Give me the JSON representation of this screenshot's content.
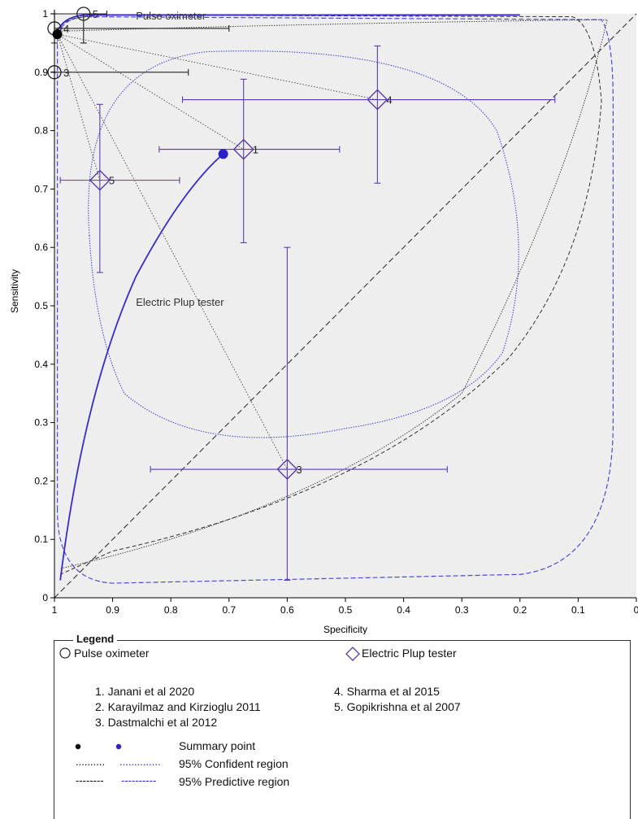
{
  "chart_data": {
    "type": "scatter",
    "xlabel": "Specificity",
    "ylabel": "Sensitivity",
    "x_reversed": true,
    "xlim": [
      1,
      0
    ],
    "ylim": [
      0,
      1
    ],
    "x_ticks": [
      "1",
      "0.9",
      "0.8",
      "0.7",
      "0.6",
      "0.5",
      "0.4",
      "0.3",
      "0.2",
      "0.1",
      "0"
    ],
    "y_ticks": [
      "0",
      "0.1",
      "0.2",
      "0.3",
      "0.4",
      "0.5",
      "0.6",
      "0.7",
      "0.8",
      "0.9",
      "1"
    ],
    "grid": false,
    "background": "#eeeeee",
    "series": [
      {
        "name": "Pulse oximeter",
        "marker": "circle",
        "color": "#222222",
        "studies": [
          {
            "id": "5",
            "spec": 0.95,
            "sens": 1.0,
            "spec_ci": [
              0.91,
              1.0
            ],
            "sens_ci": [
              0.95,
              1.0
            ]
          },
          {
            "id": "4",
            "spec": 1.0,
            "sens": 0.975,
            "spec_ci": [
              0.7,
              1.0
            ],
            "sens_ci": [
              0.95,
              1.0
            ]
          },
          {
            "id": "3",
            "spec": 1.0,
            "sens": 0.9,
            "spec_ci": [
              0.77,
              1.0
            ],
            "sens_ci": [
              0.9,
              0.9
            ]
          }
        ],
        "summary_point": {
          "spec": 0.995,
          "sens": 0.965
        },
        "curve_label": "Pulse oximeter"
      },
      {
        "name": "Electric Plup tester",
        "marker": "diamond",
        "color": "#5b3bb0",
        "studies": [
          {
            "id": "4",
            "spec": 0.445,
            "sens": 0.853,
            "spec_ci": [
              0.78,
              0.14
            ],
            "sens_ci": [
              0.71,
              0.945
            ]
          },
          {
            "id": "1",
            "spec": 0.675,
            "sens": 0.768,
            "spec_ci": [
              0.82,
              0.51
            ],
            "sens_ci": [
              0.608,
              0.888
            ]
          },
          {
            "id": "5",
            "spec": 0.922,
            "sens": 0.715,
            "spec_ci": [
              0.99,
              0.785
            ],
            "sens_ci": [
              0.557,
              0.845
            ]
          },
          {
            "id": "3",
            "spec": 0.6,
            "sens": 0.22,
            "spec_ci": [
              0.835,
              0.325
            ],
            "sens_ci": [
              0.03,
              0.6
            ]
          }
        ],
        "summary_point": {
          "spec": 0.71,
          "sens": 0.76
        },
        "curve_label": "Electric Plup tester"
      }
    ],
    "reference_line": [
      [
        1,
        0
      ],
      [
        0,
        1
      ]
    ]
  },
  "legend": {
    "title": "Legend",
    "pulse_label": "Pulse oximeter",
    "plup_label": "Electric Plup tester",
    "studies": [
      "1. Janani et al 2020",
      "2. Karayilmaz and Kirzioglu 2011",
      "3. Dastmalchi et al 2012",
      "4. Sharma et al 2015",
      "5. Gopikrishna et al 2007"
    ],
    "summary_label": "Summary point",
    "confident_dots_black": "..........",
    "confident_dots_blue": "..............",
    "confident_label": "95% Confident region",
    "predictive_dashes_black": "--------",
    "predictive_dashes_blue": "----------",
    "predictive_label": "95% Predictive region"
  }
}
